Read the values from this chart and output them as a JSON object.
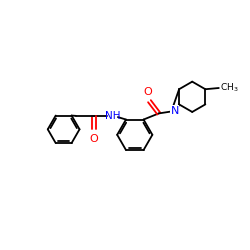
{
  "bg_color": "#ffffff",
  "bond_color": "#000000",
  "N_color": "#0000ff",
  "O_color": "#ff0000",
  "line_width": 1.3,
  "figsize": [
    2.5,
    2.5
  ],
  "dpi": 100,
  "xlim": [
    0,
    10
  ],
  "ylim": [
    0,
    10
  ]
}
